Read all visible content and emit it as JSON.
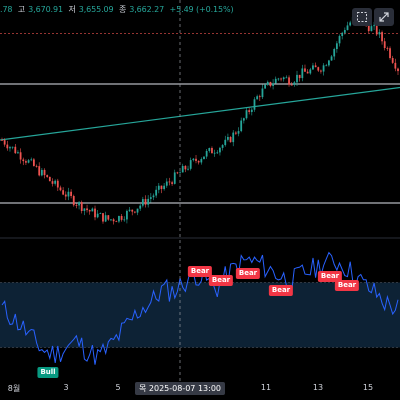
{
  "ohlc": {
    "open_value": ".78",
    "high_label": "고",
    "high_value": "3,670.91",
    "low_label": "저",
    "low_value": "3,655.09",
    "close_label": "종",
    "close_value": "3,662.27",
    "change": "+5.49 (+0.15%)"
  },
  "toolbar": {
    "left_icon": "dashed-square-icon",
    "right_icon": "expand-icon"
  },
  "x_axis": {
    "labels": [
      "8월",
      "3",
      "5",
      "11",
      "13",
      "15"
    ],
    "crosshair_label": "목 2025-08-07   13:00"
  },
  "signals": [
    {
      "type": "bear",
      "label": "Bear"
    },
    {
      "type": "bear",
      "label": "Bear"
    },
    {
      "type": "bear",
      "label": "Bear"
    },
    {
      "type": "bear",
      "label": "Bear"
    },
    {
      "type": "bear",
      "label": "Bear"
    },
    {
      "type": "bear",
      "label": "Bear"
    },
    {
      "type": "bull",
      "label": "Bull"
    }
  ],
  "colors": {
    "up": "#26a69a",
    "down": "#ef5350",
    "trend": "#26a69a",
    "oscillator": "#2962ff",
    "band_fill": "#0d2235",
    "bear_tag": "#f23645",
    "bull_tag": "#089981"
  },
  "chart_data": [
    {
      "type": "candlestick",
      "title": "",
      "x_unit": "hourly bars",
      "close_path": [
        3560,
        3548,
        3535,
        3522,
        3508,
        3495,
        3482,
        3470,
        3460,
        3452,
        3446,
        3450,
        3458,
        3468,
        3480,
        3492,
        3505,
        3518,
        3530,
        3540,
        3548,
        3556,
        3575,
        3600,
        3625,
        3640,
        3650,
        3645,
        3655,
        3660,
        3665,
        3690,
        3720,
        3735,
        3725,
        3715,
        3690,
        3662
      ],
      "horizontal_levels": [
        3640,
        3470
      ],
      "trendline": {
        "from": 3560,
        "to": 3635
      },
      "crosshair_time": "2025-08-07 13:00"
    },
    {
      "type": "line",
      "title": "",
      "series": [
        {
          "values": [
            55,
            48,
            40,
            30,
            22,
            20,
            25,
            30,
            22,
            18,
            25,
            35,
            45,
            55,
            60,
            70,
            68,
            75,
            82,
            78,
            70,
            80,
            88,
            92,
            90,
            85,
            80,
            75,
            82,
            85,
            90,
            92,
            88,
            80,
            72,
            66,
            58,
            55
          ]
        }
      ],
      "band": {
        "upper": 75,
        "lower": 25
      },
      "ylim": [
        0,
        100
      ]
    }
  ]
}
